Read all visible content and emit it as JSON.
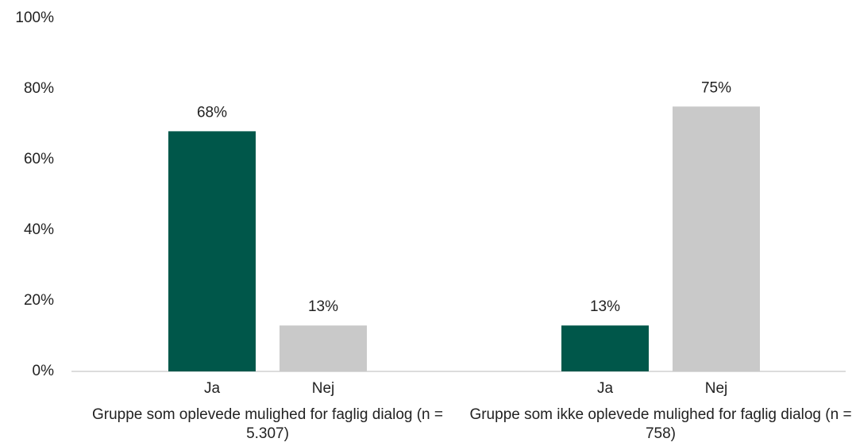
{
  "chart_data": {
    "type": "bar",
    "categories": [
      "Gruppe som oplevede mulighed for faglig dialog (n = 5.307)",
      "Gruppe som ikke oplevede mulighed for faglig dialog (n = 758)"
    ],
    "series": [
      {
        "name": "Ja",
        "color": "#00574a",
        "values": [
          68,
          13
        ],
        "value_labels": [
          "68%",
          "13%"
        ]
      },
      {
        "name": "Nej",
        "color": "#c9c9c9",
        "values": [
          13,
          75
        ],
        "value_labels": [
          "13%",
          "75%"
        ]
      }
    ],
    "ylim": [
      0,
      100
    ],
    "yticks": [
      {
        "value": 0,
        "label": "0%"
      },
      {
        "value": 20,
        "label": "20%"
      },
      {
        "value": 40,
        "label": "40%"
      },
      {
        "value": 60,
        "label": "60%"
      },
      {
        "value": 80,
        "label": "80%"
      },
      {
        "value": 100,
        "label": "100%"
      }
    ],
    "grid": false
  }
}
